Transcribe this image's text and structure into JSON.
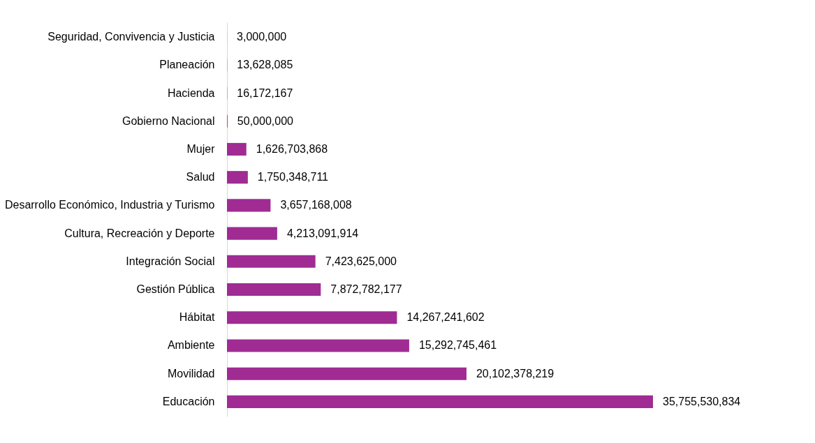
{
  "chart_data": {
    "type": "bar",
    "orientation": "horizontal",
    "color": "#a02b93",
    "categories": [
      "Seguridad, Convivencia y Justicia",
      "Planeación",
      "Hacienda",
      "Gobierno Nacional",
      "Mujer",
      "Salud",
      "Desarrollo Económico, Industria y Turismo",
      "Cultura, Recreación y Deporte",
      "Integración Social",
      "Gestión Pública",
      "Hábitat",
      "Ambiente",
      "Movilidad",
      "Educación"
    ],
    "values": [
      3000000,
      13628085,
      16172167,
      50000000,
      1626703868,
      1750348711,
      3657168008,
      4213091914,
      7423625000,
      7872782177,
      14267241602,
      15292745461,
      20102378219,
      35755530834
    ],
    "value_labels": [
      "3,000,000",
      "13,628,085",
      "16,172,167",
      "50,000,000",
      "1,626,703,868",
      "1,750,348,711",
      "3,657,168,008",
      "4,213,091,914",
      "7,423,625,000",
      "7,872,782,177",
      "14,267,241,602",
      "15,292,745,461",
      "20,102,378,219",
      "35,755,530,834"
    ]
  }
}
